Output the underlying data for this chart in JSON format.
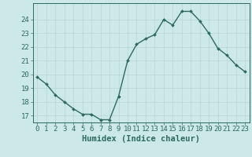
{
  "x": [
    0,
    1,
    2,
    3,
    4,
    5,
    6,
    7,
    8,
    9,
    10,
    11,
    12,
    13,
    14,
    15,
    16,
    17,
    18,
    19,
    20,
    21,
    22,
    23
  ],
  "y": [
    19.8,
    19.3,
    18.5,
    18.0,
    17.5,
    17.1,
    17.1,
    16.7,
    16.7,
    18.4,
    21.0,
    22.2,
    22.6,
    22.9,
    24.0,
    23.6,
    24.6,
    24.6,
    23.9,
    23.0,
    21.9,
    21.4,
    20.7,
    20.2
  ],
  "line_color": "#2d6b5e",
  "marker": "D",
  "markersize": 2.0,
  "linewidth": 1.0,
  "bg_color": "#cce8e8",
  "grid_color": "#b8d4d4",
  "axis_bg": "#cce8e8",
  "xlabel": "Humidex (Indice chaleur)",
  "xlim": [
    -0.5,
    23.5
  ],
  "ylim": [
    16.5,
    25.2
  ],
  "yticks": [
    17,
    18,
    19,
    20,
    21,
    22,
    23,
    24
  ],
  "xticks": [
    0,
    1,
    2,
    3,
    4,
    5,
    6,
    7,
    8,
    9,
    10,
    11,
    12,
    13,
    14,
    15,
    16,
    17,
    18,
    19,
    20,
    21,
    22,
    23
  ],
  "tick_color": "#2d6b5e",
  "label_color": "#2d6b5e",
  "tick_fontsize": 6.5,
  "xlabel_fontsize": 7.5
}
